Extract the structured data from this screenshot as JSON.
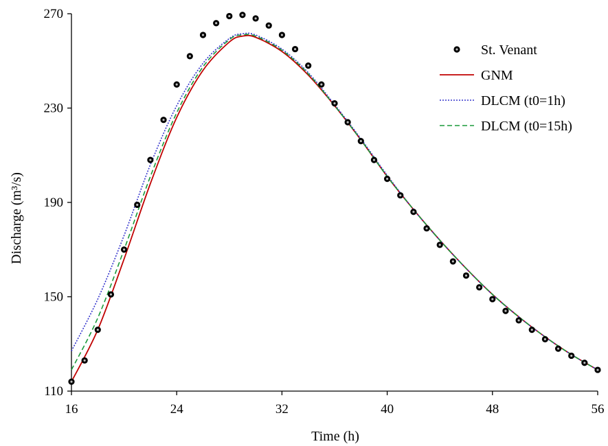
{
  "chart_data": {
    "type": "line",
    "title": "",
    "xlabel": "Time (h)",
    "ylabel": "Discharge (m³/s)",
    "xlim": [
      16,
      56
    ],
    "ylim": [
      110,
      270
    ],
    "x_ticks": [
      16,
      24,
      32,
      40,
      48,
      56
    ],
    "x_tick_labels": [
      "16",
      "24",
      "32",
      "40",
      "48",
      "56"
    ],
    "y_ticks": [
      110,
      150,
      190,
      230,
      270
    ],
    "y_tick_labels": [
      "110",
      "150",
      "190",
      "230",
      "270"
    ],
    "grid": false,
    "legend_position": "top-right",
    "series": [
      {
        "name": "St. Venant",
        "style": "markers",
        "color": "#000000",
        "x": [
          16,
          17,
          18,
          19,
          20,
          21,
          22,
          23,
          24,
          25,
          26,
          27,
          28,
          29,
          30,
          31,
          32,
          33,
          34,
          35,
          36,
          37,
          38,
          39,
          40,
          41,
          42,
          43,
          44,
          45,
          46,
          47,
          48,
          49,
          50,
          51,
          52,
          53,
          54,
          55,
          56
        ],
        "y": [
          114,
          123,
          136,
          151,
          170,
          189,
          208,
          225,
          240,
          252,
          261,
          266,
          269,
          269.5,
          268,
          265,
          261,
          255,
          248,
          240,
          232,
          224,
          216,
          208,
          200,
          193,
          186,
          179,
          172,
          165,
          159,
          154,
          149,
          144,
          140,
          136,
          132,
          128,
          125,
          122,
          119
        ]
      },
      {
        "name": "GNM",
        "style": "solid",
        "color": "#c00000",
        "x": [
          16,
          18,
          20,
          22,
          24,
          26,
          28,
          29,
          30,
          32,
          34,
          36,
          38,
          40,
          42,
          44,
          46,
          48,
          50,
          52,
          54,
          56
        ],
        "y": [
          114,
          136,
          166,
          198,
          226,
          246,
          258,
          260.5,
          260,
          254,
          244,
          231,
          216.5,
          201,
          187,
          174,
          162,
          151,
          141.5,
          133,
          125.5,
          119
        ]
      },
      {
        "name": "DLCM (t0=1h)",
        "style": "dotted",
        "color": "#3333cc",
        "x": [
          16,
          18,
          20,
          22,
          24,
          26,
          28,
          29,
          30,
          32,
          34,
          36,
          38,
          40,
          42,
          44,
          46,
          48,
          50,
          52,
          54,
          56
        ],
        "y": [
          127,
          149,
          176,
          206,
          231,
          249,
          259.5,
          261.5,
          261,
          255,
          245,
          231.5,
          217,
          201.5,
          187,
          174,
          162,
          151,
          141.5,
          133,
          125.5,
          119
        ]
      },
      {
        "name": "DLCM (t0=15h)",
        "style": "dashed",
        "color": "#1a9a3a",
        "x": [
          16,
          18,
          20,
          22,
          24,
          26,
          28,
          29,
          30,
          32,
          34,
          36,
          38,
          40,
          42,
          44,
          46,
          48,
          50,
          52,
          54,
          56
        ],
        "y": [
          119,
          141,
          170,
          201,
          228,
          247.5,
          259,
          261,
          260.5,
          254.5,
          244.5,
          231,
          216.5,
          201,
          187,
          174,
          162,
          151,
          141.5,
          133,
          125.5,
          119
        ]
      }
    ]
  }
}
